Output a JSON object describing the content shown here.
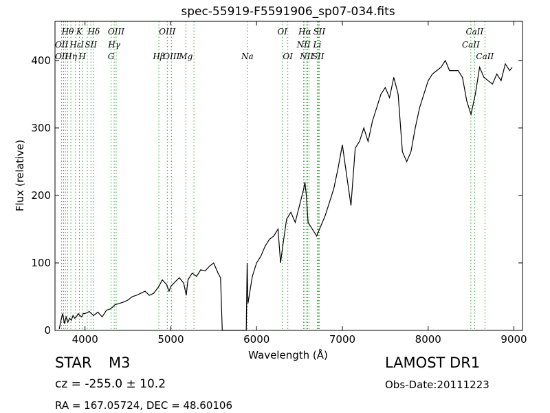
{
  "chart_data": {
    "type": "line",
    "title": "spec-55919-F5591906_sp07-034.fits",
    "xlabel": "Wavelength (Å)",
    "ylabel": "Flux (relative)",
    "xlim": [
      3650,
      9100
    ],
    "ylim": [
      0,
      458
    ],
    "xticks": [
      4000,
      5000,
      6000,
      7000,
      8000,
      9000
    ],
    "yticks": [
      0,
      100,
      200,
      300,
      400
    ],
    "grid": false,
    "legend": "none",
    "colors": {
      "spectrum": "#000000",
      "lines": "#2ca02c"
    },
    "series": [
      {
        "x": [
          3700,
          3720,
          3740,
          3760,
          3780,
          3800,
          3820,
          3840,
          3860,
          3880,
          3900,
          3920,
          3940,
          3960,
          3980,
          4000,
          4050,
          4100,
          4150,
          4200,
          4250,
          4300,
          4350,
          4400,
          4450,
          4500,
          4550,
          4600,
          4650,
          4700,
          4750,
          4800,
          4860,
          4900,
          4950,
          4980,
          5000,
          5050,
          5100,
          5150,
          5180,
          5200,
          5250,
          5300,
          5350,
          5400,
          5450,
          5500,
          5550,
          5580,
          5600,
          5880,
          5890,
          5900,
          5950,
          6000,
          6050,
          6100,
          6150,
          6200,
          6250,
          6280,
          6300,
          6350,
          6400,
          6450,
          6500,
          6550,
          6563,
          6580,
          6600,
          6650,
          6700,
          6750,
          6800,
          6850,
          6900,
          6950,
          7000,
          7050,
          7100,
          7150,
          7200,
          7250,
          7300,
          7350,
          7400,
          7450,
          7500,
          7550,
          7600,
          7650,
          7700,
          7750,
          7800,
          7850,
          7900,
          7950,
          8000,
          8050,
          8100,
          8150,
          8200,
          8250,
          8300,
          8350,
          8400,
          8450,
          8500,
          8550,
          8600,
          8650,
          8700,
          8750,
          8800,
          8850,
          8900,
          8950,
          8980
        ],
        "y": [
          2,
          15,
          25,
          10,
          20,
          12,
          18,
          15,
          22,
          18,
          20,
          25,
          22,
          20,
          25,
          25,
          28,
          22,
          27,
          20,
          30,
          32,
          38,
          40,
          42,
          45,
          50,
          52,
          55,
          58,
          52,
          55,
          65,
          75,
          68,
          58,
          65,
          72,
          78,
          70,
          52,
          75,
          85,
          80,
          90,
          88,
          95,
          100,
          85,
          78,
          0,
          0,
          100,
          40,
          80,
          100,
          110,
          125,
          135,
          140,
          150,
          100,
          120,
          165,
          175,
          160,
          185,
          210,
          220,
          200,
          160,
          150,
          140,
          155,
          170,
          190,
          210,
          240,
          275,
          230,
          185,
          270,
          280,
          300,
          280,
          310,
          330,
          350,
          360,
          345,
          375,
          350,
          265,
          250,
          265,
          300,
          330,
          350,
          370,
          380,
          385,
          390,
          400,
          385,
          385,
          385,
          375,
          340,
          320,
          350,
          390,
          375,
          370,
          365,
          380,
          370,
          395,
          385,
          390
        ]
      }
    ],
    "spectral_lines": [
      {
        "label": "Hθ",
        "x": 3798,
        "row": 1
      },
      {
        "label": "K",
        "x": 3934,
        "row": 1
      },
      {
        "label": "Hδ",
        "x": 4102,
        "row": 1
      },
      {
        "label": "OIII",
        "x": 4363,
        "row": 1
      },
      {
        "label": "OIII",
        "x": 4959,
        "row": 1
      },
      {
        "label": "OI",
        "x": 6300,
        "row": 1
      },
      {
        "label": "Hα",
        "x": 6563,
        "row": 1
      },
      {
        "label": "SII",
        "x": 6731,
        "row": 1
      },
      {
        "label": "CaII",
        "x": 8542,
        "row": 1
      },
      {
        "label": "OII",
        "x": 3727,
        "row": 2
      },
      {
        "label": "Hε",
        "x": 3889,
        "row": 2
      },
      {
        "label": "I",
        "x": 3968,
        "row": 2
      },
      {
        "label": "SII",
        "x": 4069,
        "row": 2
      },
      {
        "label": "Hγ",
        "x": 4340,
        "row": 2
      },
      {
        "label": "NII",
        "x": 6548,
        "row": 2
      },
      {
        "label": "Li",
        "x": 6707,
        "row": 2
      },
      {
        "label": "CaII",
        "x": 8498,
        "row": 2
      },
      {
        "label": "OII",
        "x": 3727,
        "row": 3
      },
      {
        "label": "Hη",
        "x": 3835,
        "row": 3
      },
      {
        "label": "H",
        "x": 3968,
        "row": 3
      },
      {
        "label": "G",
        "x": 4304,
        "row": 3
      },
      {
        "label": "Hβ",
        "x": 4861,
        "row": 3
      },
      {
        "label": "OIII",
        "x": 5007,
        "row": 3
      },
      {
        "label": "Mg",
        "x": 5175,
        "row": 3
      },
      {
        "label": "Na",
        "x": 5893,
        "row": 3
      },
      {
        "label": "OI",
        "x": 6364,
        "row": 3
      },
      {
        "label": "NII",
        "x": 6584,
        "row": 3
      },
      {
        "label": "SII",
        "x": 6717,
        "row": 3
      },
      {
        "label": "CaII",
        "x": 8662,
        "row": 3
      }
    ],
    "extra_line_positions": [
      3750,
      3771,
      3889,
      4026,
      5270,
      6595,
      6611,
      6725
    ]
  },
  "footer": {
    "object_type": "STAR",
    "subclass": "M3",
    "survey": "LAMOST DR1",
    "cz": "cz = -255.0  ± 10.2",
    "obs_date": "Obs-Date:20111223",
    "radec": "RA = 167.05724, DEC = 48.60106"
  }
}
